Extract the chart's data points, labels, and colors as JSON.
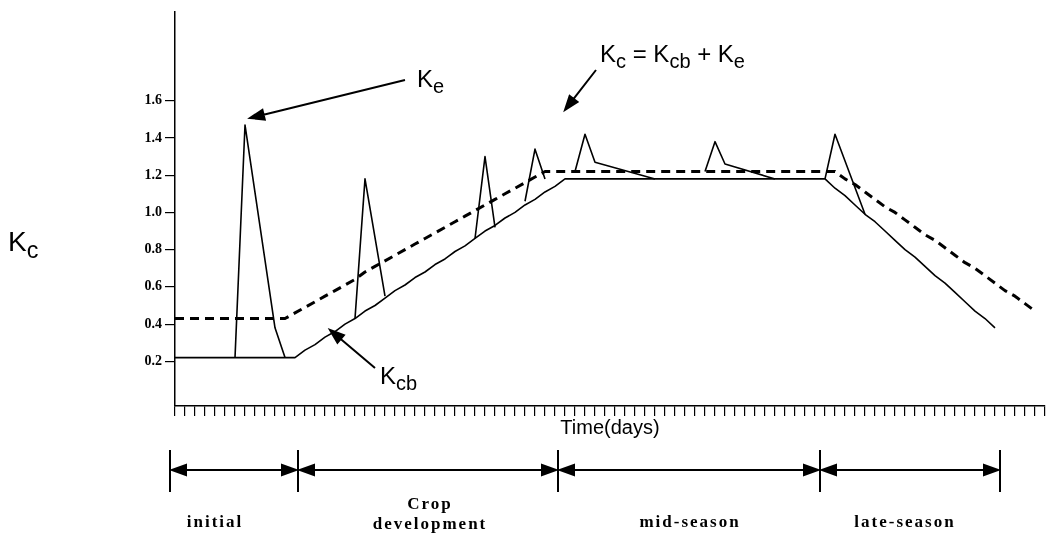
{
  "chart_data": {
    "type": "line",
    "xlabel": "Time(days)",
    "ylabel": "K$_{c}$",
    "categories": [
      null,
      null,
      null,
      null,
      null,
      null,
      null,
      null,
      null,
      null,
      null,
      null,
      null,
      null,
      null,
      null,
      null,
      null,
      null,
      null,
      null,
      null,
      null,
      null,
      null,
      null,
      null,
      null,
      null,
      null,
      null,
      null,
      null,
      null,
      null,
      null,
      null,
      null,
      null,
      null,
      null,
      null,
      null,
      null,
      null,
      null,
      null,
      null,
      null,
      null,
      null,
      null,
      null,
      null,
      null,
      null,
      null,
      null,
      null,
      null,
      null,
      null,
      null,
      null,
      null,
      null,
      null,
      null,
      null,
      null,
      null,
      null,
      null,
      null,
      null,
      null,
      null,
      null,
      null,
      null,
      null,
      null,
      null,
      null,
      null,
      null,
      null,
      null
    ],
    "series": [
      {
        "color": "#000000",
        "line_style": "solid",
        "values": [
          0.22,
          0.22,
          0.22,
          0.22,
          0.22,
          0.22,
          0.22,
          0.22,
          0.22,
          0.22,
          0.22,
          0.22,
          0.22,
          0.26,
          0.29,
          0.33,
          0.36,
          0.4,
          0.43,
          0.47,
          0.5,
          0.54,
          0.58,
          0.61,
          0.65,
          0.68,
          0.72,
          0.75,
          0.79,
          0.82,
          0.86,
          0.9,
          0.93,
          0.97,
          1.0,
          1.04,
          1.07,
          1.11,
          1.14,
          1.18,
          1.18,
          1.18,
          1.18,
          1.18,
          1.18,
          1.18,
          1.18,
          1.18,
          1.18,
          1.18,
          1.18,
          1.18,
          1.18,
          1.18,
          1.18,
          1.18,
          1.18,
          1.18,
          1.18,
          1.18,
          1.18,
          1.18,
          1.18,
          1.18,
          1.18,
          1.18,
          1.13,
          1.09,
          1.04,
          0.99,
          0.95,
          0.9,
          0.85,
          0.8,
          0.76,
          0.71,
          0.66,
          0.62,
          0.57,
          0.52,
          0.47,
          0.43,
          0.38,
          null,
          null,
          null,
          null,
          null
        ]
      },
      {
        "color": "#000000",
        "line_style": "dashed",
        "values": [
          0.43,
          0.43,
          0.43,
          0.43,
          0.43,
          0.43,
          0.43,
          0.43,
          0.43,
          0.43,
          0.43,
          0.43,
          0.46,
          0.49,
          0.52,
          0.55,
          0.58,
          0.61,
          0.64,
          0.68,
          0.71,
          0.74,
          0.77,
          0.8,
          0.83,
          0.86,
          0.89,
          0.92,
          0.95,
          0.98,
          1.01,
          1.04,
          1.07,
          1.1,
          1.13,
          1.16,
          1.19,
          1.22,
          1.22,
          1.22,
          1.22,
          1.22,
          1.22,
          1.22,
          1.22,
          1.22,
          1.22,
          1.22,
          1.22,
          1.22,
          1.22,
          1.22,
          1.22,
          1.22,
          1.22,
          1.22,
          1.22,
          1.22,
          1.22,
          1.22,
          1.22,
          1.22,
          1.22,
          1.22,
          1.22,
          1.22,
          1.22,
          1.18,
          1.15,
          1.11,
          1.07,
          1.03,
          1.0,
          0.96,
          0.92,
          0.88,
          0.85,
          0.81,
          0.77,
          0.73,
          0.7,
          0.66,
          0.62,
          0.58,
          0.55,
          0.51,
          0.47,
          null
        ]
      },
      {
        "color": "#000000",
        "line_style": "solid",
        "values": [
          null,
          null,
          null,
          null,
          null,
          null,
          0.22,
          1.47,
          null,
          null,
          0.38,
          0.22,
          null,
          null,
          null,
          null,
          null,
          null,
          null,
          null,
          null,
          null,
          null,
          null,
          null,
          null,
          null,
          null,
          null,
          null,
          null,
          null,
          null,
          null,
          null,
          null,
          null,
          null,
          null,
          null,
          null,
          null,
          null,
          null,
          null,
          null,
          null,
          null,
          null,
          null,
          null,
          null,
          null,
          null,
          null,
          null,
          null,
          null,
          null,
          null,
          null,
          null,
          null,
          null,
          null,
          null,
          null,
          null,
          null,
          null,
          null,
          null,
          null,
          null,
          null,
          null,
          null,
          null,
          null,
          null,
          null,
          null,
          null,
          null,
          null,
          null,
          null,
          null
        ]
      },
      {
        "color": "#000000",
        "line_style": "solid",
        "values": [
          null,
          null,
          null,
          null,
          null,
          null,
          null,
          null,
          null,
          null,
          null,
          null,
          null,
          null,
          null,
          null,
          null,
          null,
          0.43,
          1.18,
          null,
          0.55,
          null,
          null,
          null,
          null,
          null,
          null,
          null,
          null,
          null,
          null,
          null,
          null,
          null,
          null,
          null,
          null,
          null,
          null,
          null,
          null,
          null,
          null,
          null,
          null,
          null,
          null,
          null,
          null,
          null,
          null,
          null,
          null,
          null,
          null,
          null,
          null,
          null,
          null,
          null,
          null,
          null,
          null,
          null,
          null,
          null,
          null,
          null,
          null,
          null,
          null,
          null,
          null,
          null,
          null,
          null,
          null,
          null,
          null,
          null,
          null,
          null,
          null,
          null,
          null,
          null,
          null
        ]
      },
      {
        "color": "#000000",
        "line_style": "solid",
        "values": [
          null,
          null,
          null,
          null,
          null,
          null,
          null,
          null,
          null,
          null,
          null,
          null,
          null,
          null,
          null,
          null,
          null,
          null,
          null,
          null,
          null,
          null,
          null,
          null,
          null,
          null,
          null,
          null,
          null,
          null,
          0.86,
          1.3,
          0.92,
          null,
          null,
          null,
          null,
          null,
          null,
          null,
          null,
          null,
          null,
          null,
          null,
          null,
          null,
          null,
          null,
          null,
          null,
          null,
          null,
          null,
          null,
          null,
          null,
          null,
          null,
          null,
          null,
          null,
          null,
          null,
          null,
          null,
          null,
          null,
          null,
          null,
          null,
          null,
          null,
          null,
          null,
          null,
          null,
          null,
          null,
          null,
          null,
          null,
          null,
          null,
          null,
          null,
          null,
          null
        ]
      },
      {
        "color": "#000000",
        "line_style": "solid",
        "values": [
          null,
          null,
          null,
          null,
          null,
          null,
          null,
          null,
          null,
          null,
          null,
          null,
          null,
          null,
          null,
          null,
          null,
          null,
          null,
          null,
          null,
          null,
          null,
          null,
          null,
          null,
          null,
          null,
          null,
          null,
          null,
          null,
          null,
          null,
          null,
          1.06,
          1.34,
          1.18,
          null,
          null,
          null,
          null,
          null,
          null,
          null,
          null,
          null,
          null,
          null,
          null,
          null,
          null,
          null,
          null,
          null,
          null,
          null,
          null,
          null,
          null,
          null,
          null,
          null,
          null,
          null,
          null,
          null,
          null,
          null,
          null,
          null,
          null,
          null,
          null,
          null,
          null,
          null,
          null,
          null,
          null,
          null,
          null,
          null,
          null,
          null,
          null,
          null,
          null
        ]
      },
      {
        "color": "#000000",
        "line_style": "solid",
        "values": [
          null,
          null,
          null,
          null,
          null,
          null,
          null,
          null,
          null,
          null,
          null,
          null,
          null,
          null,
          null,
          null,
          null,
          null,
          null,
          null,
          null,
          null,
          null,
          null,
          null,
          null,
          null,
          null,
          null,
          null,
          null,
          null,
          null,
          null,
          null,
          null,
          null,
          null,
          null,
          null,
          1.22,
          1.42,
          1.27,
          null,
          null,
          null,
          null,
          null,
          1.18,
          null,
          null,
          null,
          null,
          null,
          null,
          null,
          null,
          null,
          null,
          null,
          null,
          null,
          null,
          null,
          null,
          null,
          null,
          null,
          null,
          null,
          null,
          null,
          null,
          null,
          null,
          null,
          null,
          null,
          null,
          null,
          null,
          null,
          null,
          null,
          null,
          null,
          null,
          null
        ]
      },
      {
        "color": "#000000",
        "line_style": "solid",
        "values": [
          null,
          null,
          null,
          null,
          null,
          null,
          null,
          null,
          null,
          null,
          null,
          null,
          null,
          null,
          null,
          null,
          null,
          null,
          null,
          null,
          null,
          null,
          null,
          null,
          null,
          null,
          null,
          null,
          null,
          null,
          null,
          null,
          null,
          null,
          null,
          null,
          null,
          null,
          null,
          null,
          null,
          null,
          null,
          null,
          null,
          null,
          null,
          null,
          null,
          null,
          null,
          null,
          null,
          1.22,
          1.38,
          1.26,
          null,
          null,
          null,
          null,
          1.18,
          null,
          null,
          null,
          null,
          null,
          null,
          null,
          null,
          null,
          null,
          null,
          null,
          null,
          null,
          null,
          null,
          null,
          null,
          null,
          null,
          null,
          null,
          null,
          null,
          null,
          null,
          null
        ]
      },
      {
        "color": "#000000",
        "line_style": "solid",
        "values": [
          null,
          null,
          null,
          null,
          null,
          null,
          null,
          null,
          null,
          null,
          null,
          null,
          null,
          null,
          null,
          null,
          null,
          null,
          null,
          null,
          null,
          null,
          null,
          null,
          null,
          null,
          null,
          null,
          null,
          null,
          null,
          null,
          null,
          null,
          null,
          null,
          null,
          null,
          null,
          null,
          null,
          null,
          null,
          null,
          null,
          null,
          null,
          null,
          null,
          null,
          null,
          null,
          null,
          null,
          null,
          null,
          null,
          null,
          null,
          null,
          null,
          null,
          null,
          null,
          null,
          1.18,
          1.42,
          null,
          null,
          0.99,
          null,
          null,
          null,
          null,
          null,
          null,
          null,
          null,
          null,
          null,
          null,
          null,
          null,
          null,
          null,
          null,
          null,
          null
        ]
      }
    ],
    "ylim": [
      -0.04,
      2.08
    ],
    "yticks": [
      {
        "value": 0.2,
        "label": "0.2"
      },
      {
        "value": 0.4,
        "label": "0.4"
      },
      {
        "value": 0.6,
        "label": "0.6"
      },
      {
        "value": 0.8,
        "label": "0.8"
      },
      {
        "value": 1.0,
        "label": "1.0"
      },
      {
        "value": 1.2,
        "label": "1.2"
      },
      {
        "value": 1.4,
        "label": "1.4"
      },
      {
        "value": 1.6,
        "label": "1.6"
      }
    ],
    "tick_labels": "y",
    "grid": false,
    "legend": false,
    "marker": "none",
    "annotations": [
      "K$_{e}$",
      "K$_{cb}$",
      "K$_{c}$ = K$_{cb}$ + K$_{e}$",
      "initial",
      "Crop development",
      "mid-season",
      "late-season"
    ]
  }
}
